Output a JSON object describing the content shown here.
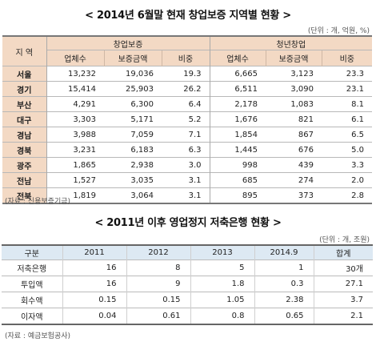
{
  "table1": {
    "title": "< 2014년 6월말 현재 창업보증 지역별 현황 >",
    "unit": "(단위 : 개, 억원, %)",
    "region_header": "지 역",
    "group1": "창업보증",
    "group2": "청년창업",
    "subheaders": [
      "업체수",
      "보증금액",
      "비중",
      "업체수",
      "보증금액",
      "비중"
    ],
    "rows": [
      {
        "region": "서울",
        "cells": [
          "13,232",
          "19,036",
          "19.3",
          "6,665",
          "3,123",
          "23.3"
        ]
      },
      {
        "region": "경기",
        "cells": [
          "15,414",
          "25,903",
          "26.2",
          "6,511",
          "3,090",
          "23.1"
        ]
      },
      {
        "region": "부산",
        "cells": [
          "4,291",
          "6,300",
          "6.4",
          "2,178",
          "1,083",
          "8.1"
        ]
      },
      {
        "region": "대구",
        "cells": [
          "3,303",
          "5,171",
          "5.2",
          "1,676",
          "821",
          "6.1"
        ]
      },
      {
        "region": "경남",
        "cells": [
          "3,988",
          "7,059",
          "7.1",
          "1,854",
          "867",
          "6.5"
        ]
      },
      {
        "region": "경북",
        "cells": [
          "3,231",
          "6,183",
          "6.3",
          "1,445",
          "676",
          "5.0"
        ]
      },
      {
        "region": "광주",
        "cells": [
          "1,865",
          "2,938",
          "3.0",
          "998",
          "439",
          "3.3"
        ]
      },
      {
        "region": "전남",
        "cells": [
          "1,527",
          "3,035",
          "3.1",
          "685",
          "274",
          "2.0"
        ]
      },
      {
        "region": "전북",
        "cells": [
          "1,819",
          "3,064",
          "3.1",
          "895",
          "373",
          "2.8"
        ]
      }
    ],
    "source": "(자료 : 신용보증기금)"
  },
  "table2": {
    "title": "< 2011년 이후 영업정지 저축은행 현황 >",
    "unit": "(단위 : 개, 조원)",
    "headers": [
      "구분",
      "2011",
      "2012",
      "2013",
      "2014.9",
      "합계"
    ],
    "rows": [
      {
        "label": "저축은행",
        "cells": [
          "16",
          "8",
          "5",
          "1",
          "30개"
        ]
      },
      {
        "label": "투입액",
        "cells": [
          "16",
          "9",
          "1.8",
          "0.3",
          "27.1"
        ]
      },
      {
        "label": "회수액",
        "cells": [
          "0.15",
          "0.15",
          "1.05",
          "2.38",
          "3.7"
        ]
      },
      {
        "label": "이자액",
        "cells": [
          "0.04",
          "0.61",
          "0.8",
          "0.65",
          "2.1"
        ]
      }
    ],
    "source": "(자료 : 예금보험공사)"
  },
  "colors": {
    "table1_header_bg": "#f3d9c4",
    "table2_header_bg": "#dde9f3"
  }
}
